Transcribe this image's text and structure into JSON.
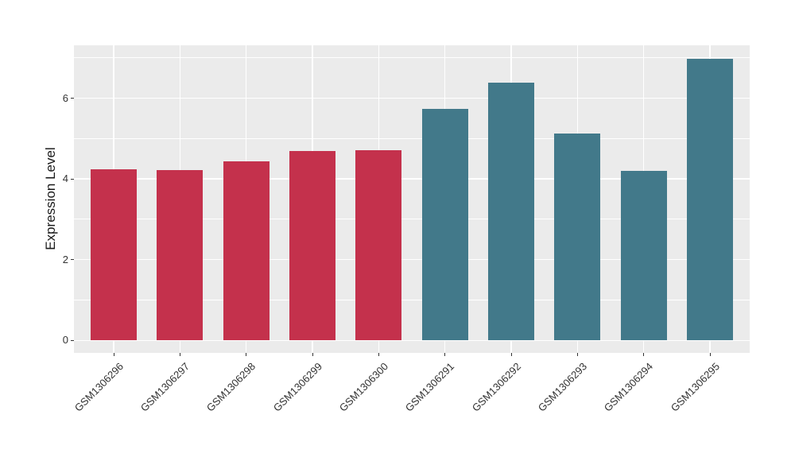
{
  "chart_data": {
    "type": "bar",
    "title": "",
    "xlabel": "",
    "ylabel": "Expression Level",
    "categories": [
      "GSM1306296",
      "GSM1306297",
      "GSM1306298",
      "GSM1306299",
      "GSM1306300",
      "GSM1306291",
      "GSM1306292",
      "GSM1306293",
      "GSM1306294",
      "GSM1306295"
    ],
    "values": [
      4.24,
      4.21,
      4.43,
      4.7,
      4.72,
      5.73,
      6.38,
      5.13,
      4.19,
      6.97
    ],
    "bar_colors": [
      "#C4314C",
      "#C4314C",
      "#C4314C",
      "#C4314C",
      "#C4314C",
      "#42798A",
      "#42798A",
      "#42798A",
      "#42798A",
      "#42798A"
    ],
    "yticks": [
      0,
      2,
      4,
      6
    ],
    "yticks_minor": [
      1,
      3,
      5,
      7
    ],
    "ylim": [
      -0.31,
      7.31
    ],
    "grid": true,
    "legend_position": "none",
    "x_tick_rotation_deg": 45,
    "bar_relative_width": 0.7,
    "colors": {
      "panel_bg": "#EBEBEB",
      "grid": "#FFFFFF",
      "red_bars": "#C4314C",
      "teal_bars": "#42798A",
      "tick_text": "#333333",
      "axis_title_text": "#1A1A1A"
    }
  }
}
